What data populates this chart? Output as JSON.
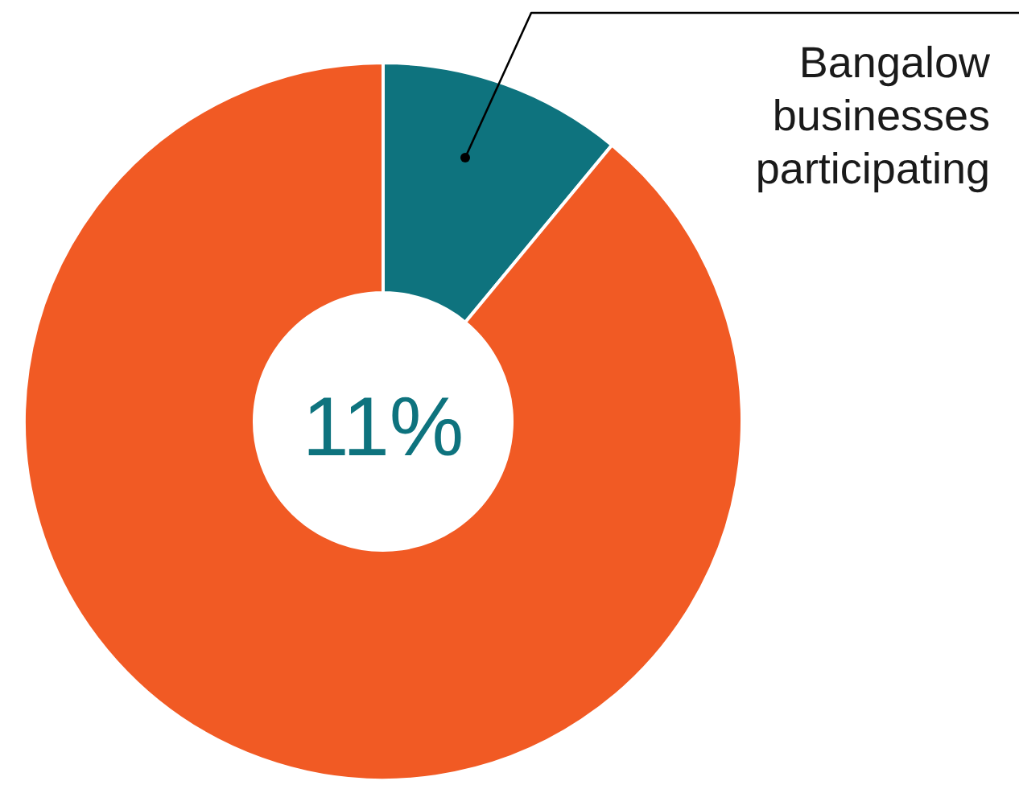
{
  "chart_data": {
    "type": "donut",
    "categories": [
      "Bangalow businesses participating",
      null
    ],
    "values": [
      11,
      89
    ],
    "colors": [
      "#0e737e",
      "#f15a24"
    ],
    "annotations": [
      "11%"
    ]
  }
}
